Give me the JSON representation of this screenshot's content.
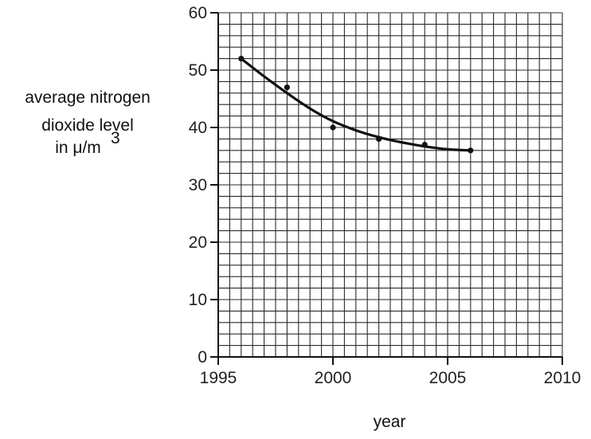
{
  "chart_data": {
    "type": "scatter",
    "title": "",
    "xlabel": "year",
    "ylabel_lines": [
      "average nitrogen",
      "dioxide level",
      "in μ/m"
    ],
    "ylabel_superscript": "3",
    "xlim": [
      1995,
      2010
    ],
    "ylim": [
      0,
      60
    ],
    "x_major_ticks": [
      1995,
      2000,
      2005,
      2010
    ],
    "y_major_ticks": [
      0,
      10,
      20,
      30,
      40,
      50,
      60
    ],
    "x_tick_labels": [
      "1995",
      "2000",
      "2005",
      "2010"
    ],
    "y_tick_labels": [
      "0",
      "10",
      "20",
      "30",
      "40",
      "50",
      "60"
    ],
    "x_minor_step": 0.5,
    "y_minor_step": 2,
    "grid": true,
    "legend": "none",
    "series": [
      {
        "x": [
          1996,
          1998,
          2000,
          2002,
          2004,
          2006
        ],
        "y": [
          52,
          47,
          40,
          38,
          37,
          36
        ]
      }
    ],
    "trend_curve": {
      "x": [
        1996,
        1997,
        1998,
        1999,
        2000,
        2001,
        2002,
        2003,
        2004,
        2005,
        2006
      ],
      "y": [
        52.0,
        48.9,
        46.0,
        43.3,
        41.1,
        39.5,
        38.3,
        37.4,
        36.7,
        36.2,
        36.0
      ]
    },
    "colors": {
      "grid": "#2b2b2b",
      "line": "#111111",
      "marker": "#111111"
    }
  }
}
